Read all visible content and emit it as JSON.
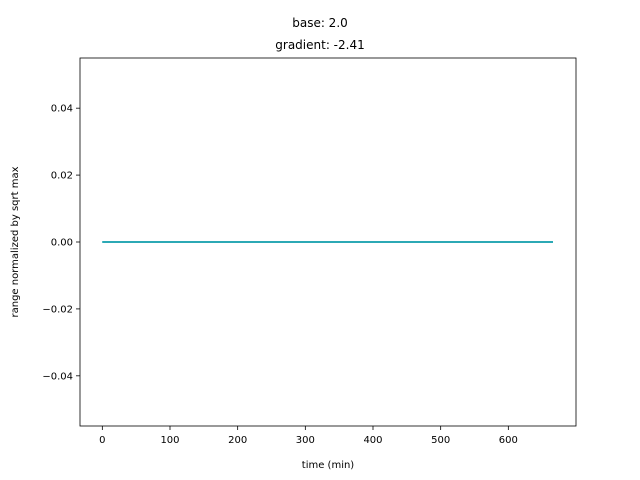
{
  "chart_data": {
    "type": "line",
    "title_line1": "base: 2.0",
    "title_line2": "gradient: -2.41",
    "xlabel": "time (min)",
    "ylabel": "range normalized by sqrt max",
    "xlim": [
      -33,
      700
    ],
    "ylim": [
      -0.055,
      0.055
    ],
    "x_ticks": [
      0,
      100,
      200,
      300,
      400,
      500,
      600
    ],
    "y_ticks": [
      -0.04,
      -0.02,
      0.0,
      0.02,
      0.04
    ],
    "y_tick_labels": [
      "−0.04",
      "−0.02",
      "0.00",
      "0.02",
      "0.04"
    ],
    "grid": false,
    "series": [
      {
        "color": "#17becf",
        "x": [
          0,
          666
        ],
        "y": [
          0.0,
          0.0
        ]
      },
      {
        "color": "#2ca9b5",
        "x": [
          0,
          666
        ],
        "y": [
          0.0,
          0.0
        ]
      }
    ]
  }
}
